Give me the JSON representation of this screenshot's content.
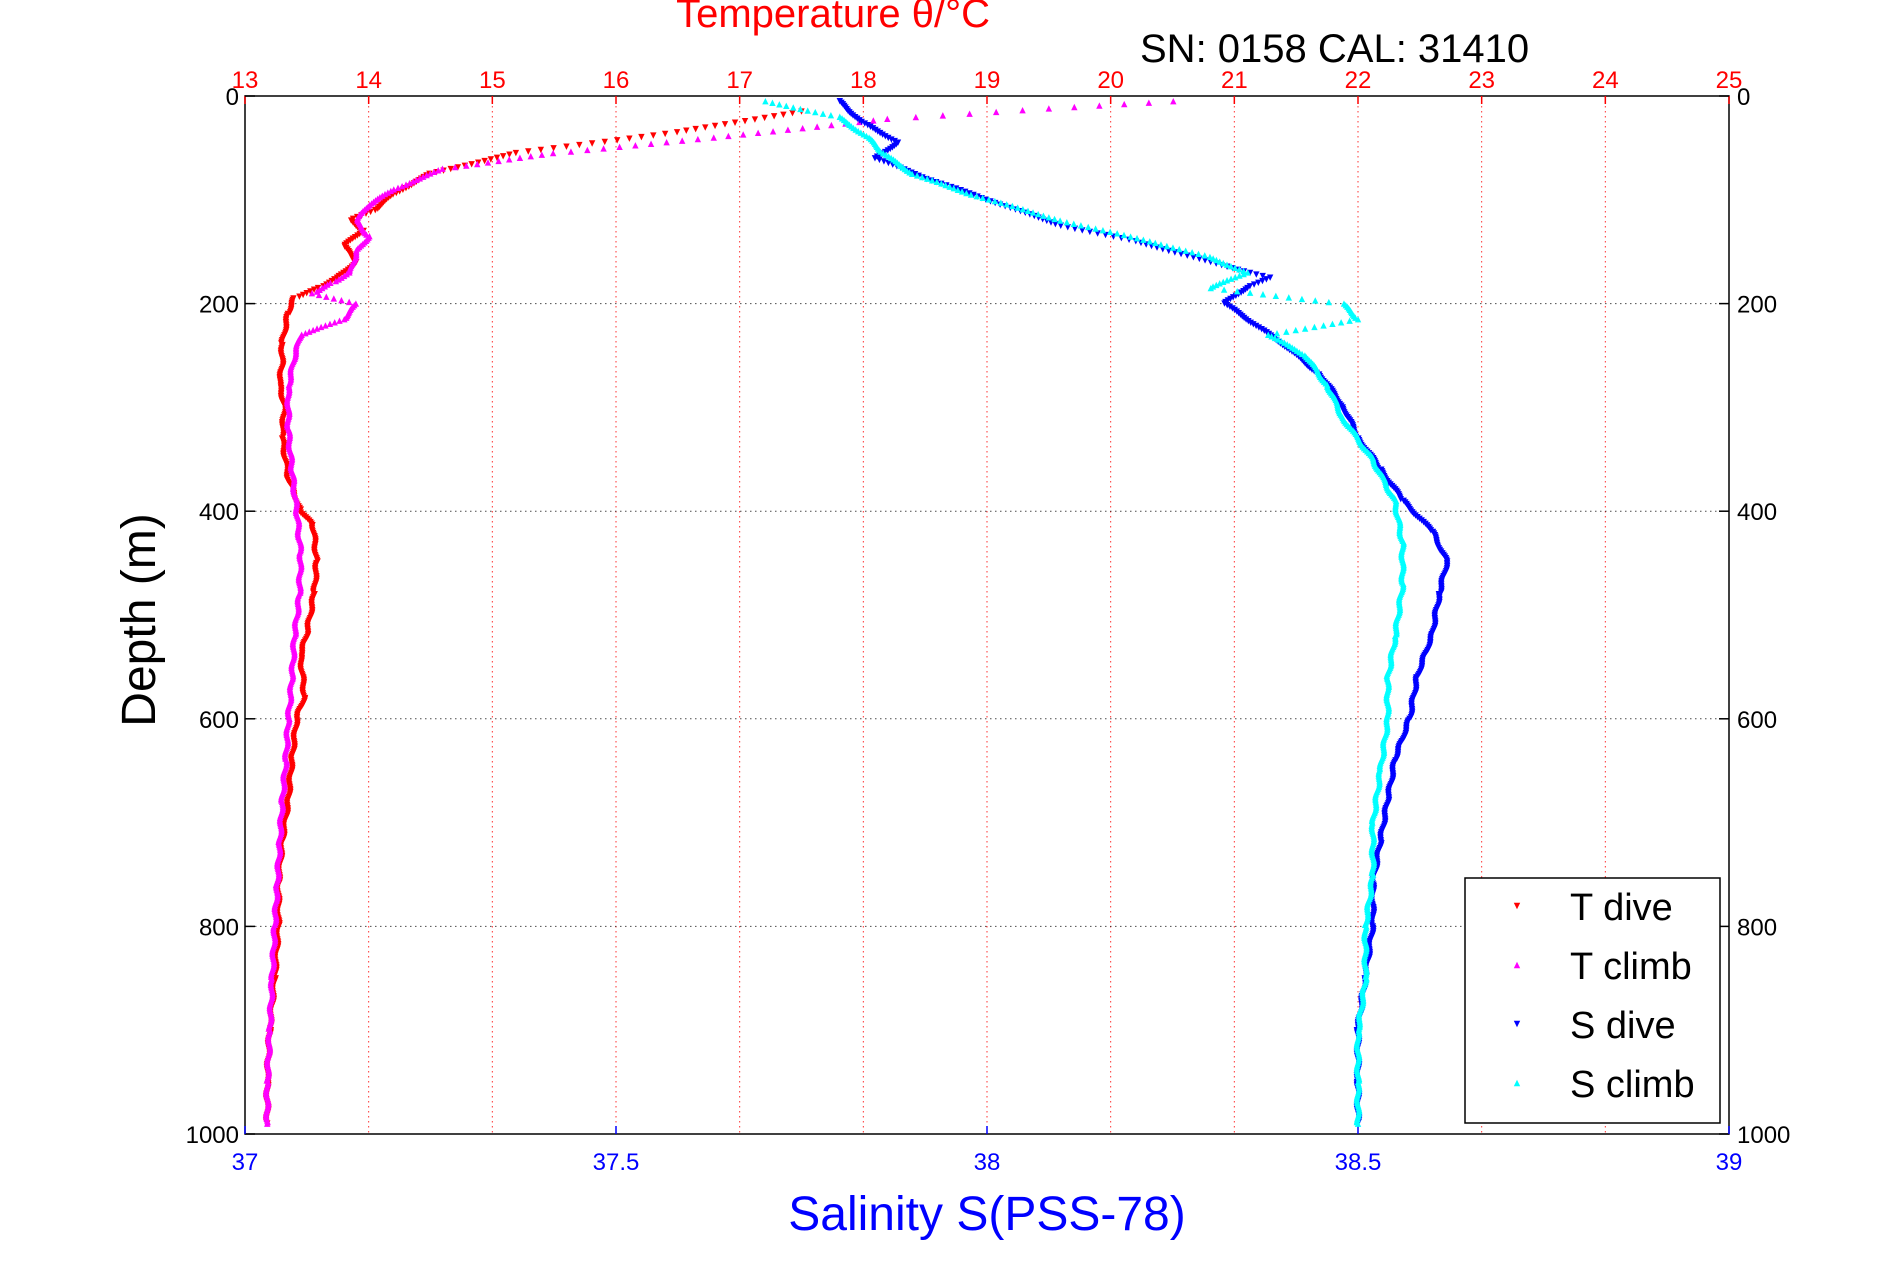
{
  "chart_data": {
    "type": "scatter",
    "title": "Temperature θ/°C",
    "subtitle": "SN: 0158  CAL: 31410",
    "ylabel": "Depth (m)",
    "xlabel_bottom": "Salinity S(PSS-78)",
    "y_axis": {
      "range": [
        0,
        1000
      ],
      "reversed": true,
      "ticks": [
        "0",
        "200",
        "400",
        "600",
        "800",
        "1000"
      ]
    },
    "x_axis_top": {
      "label": "Temperature θ/°C",
      "range": [
        13,
        25
      ],
      "ticks": [
        "13",
        "14",
        "15",
        "16",
        "17",
        "18",
        "19",
        "20",
        "21",
        "22",
        "23",
        "24",
        "25"
      ],
      "color": "#ff0000"
    },
    "x_axis_bottom": {
      "label": "Salinity S(PSS-78)",
      "range": [
        37,
        39
      ],
      "ticks": [
        "37",
        "37.5",
        "38",
        "38.5",
        "39"
      ],
      "color": "#0000ff"
    },
    "grid": true,
    "legend_position": "bottom-right",
    "series": [
      {
        "name": "T dive",
        "axis": "top",
        "color": "#ff0000",
        "marker": "triangle-down",
        "points": [
          [
            17.5,
            15
          ],
          [
            16.5,
            35
          ],
          [
            15.2,
            55
          ],
          [
            14.5,
            75
          ],
          [
            14.2,
            95
          ],
          [
            14.05,
            110
          ],
          [
            13.85,
            120
          ],
          [
            13.95,
            130
          ],
          [
            13.8,
            145
          ],
          [
            13.9,
            160
          ],
          [
            13.75,
            175
          ],
          [
            13.6,
            185
          ],
          [
            13.4,
            195
          ],
          [
            13.35,
            210
          ],
          [
            13.3,
            240
          ],
          [
            13.3,
            260
          ],
          [
            13.28,
            280
          ],
          [
            13.32,
            300
          ],
          [
            13.3,
            330
          ],
          [
            13.35,
            370
          ],
          [
            13.45,
            400
          ],
          [
            13.55,
            415
          ],
          [
            13.58,
            450
          ],
          [
            13.56,
            480
          ],
          [
            13.5,
            520
          ],
          [
            13.45,
            540
          ],
          [
            13.48,
            580
          ],
          [
            13.42,
            600
          ],
          [
            13.38,
            640
          ],
          [
            13.35,
            680
          ],
          [
            13.3,
            720
          ],
          [
            13.27,
            760
          ],
          [
            13.27,
            800
          ],
          [
            13.24,
            850
          ],
          [
            13.2,
            900
          ],
          [
            13.18,
            950
          ],
          [
            13.18,
            990
          ]
        ]
      },
      {
        "name": "T climb",
        "axis": "top",
        "color": "#ff00ff",
        "marker": "triangle-up",
        "points": [
          [
            20.5,
            5
          ],
          [
            19.5,
            12
          ],
          [
            18.2,
            22
          ],
          [
            16.8,
            40
          ],
          [
            15.5,
            55
          ],
          [
            14.6,
            70
          ],
          [
            14.2,
            90
          ],
          [
            14.0,
            105
          ],
          [
            13.9,
            120
          ],
          [
            14.0,
            135
          ],
          [
            13.9,
            150
          ],
          [
            13.85,
            170
          ],
          [
            13.7,
            180
          ],
          [
            13.55,
            190
          ],
          [
            13.9,
            200
          ],
          [
            13.8,
            215
          ],
          [
            13.45,
            230
          ],
          [
            13.4,
            250
          ],
          [
            13.35,
            280
          ],
          [
            13.35,
            320
          ],
          [
            13.38,
            360
          ],
          [
            13.42,
            400
          ],
          [
            13.45,
            440
          ],
          [
            13.44,
            480
          ],
          [
            13.4,
            520
          ],
          [
            13.38,
            560
          ],
          [
            13.35,
            600
          ],
          [
            13.33,
            640
          ],
          [
            13.3,
            680
          ],
          [
            13.28,
            720
          ],
          [
            13.26,
            760
          ],
          [
            13.24,
            800
          ],
          [
            13.22,
            850
          ],
          [
            13.2,
            900
          ],
          [
            13.18,
            950
          ],
          [
            13.18,
            990
          ]
        ]
      },
      {
        "name": "S dive",
        "axis": "bottom",
        "color": "#0000ff",
        "marker": "triangle-down",
        "points": [
          [
            37.8,
            5
          ],
          [
            37.83,
            25
          ],
          [
            37.88,
            45
          ],
          [
            37.85,
            60
          ],
          [
            37.92,
            80
          ],
          [
            38.0,
            100
          ],
          [
            38.1,
            125
          ],
          [
            38.2,
            140
          ],
          [
            38.3,
            160
          ],
          [
            38.38,
            175
          ],
          [
            38.35,
            185
          ],
          [
            38.32,
            200
          ],
          [
            38.36,
            220
          ],
          [
            38.4,
            240
          ],
          [
            38.45,
            270
          ],
          [
            38.48,
            300
          ],
          [
            38.5,
            330
          ],
          [
            38.53,
            360
          ],
          [
            38.56,
            390
          ],
          [
            38.6,
            420
          ],
          [
            38.62,
            450
          ],
          [
            38.61,
            480
          ],
          [
            38.6,
            520
          ],
          [
            38.58,
            560
          ],
          [
            38.57,
            600
          ],
          [
            38.55,
            640
          ],
          [
            38.54,
            680
          ],
          [
            38.53,
            720
          ],
          [
            38.52,
            760
          ],
          [
            38.52,
            800
          ],
          [
            38.51,
            850
          ],
          [
            38.5,
            900
          ],
          [
            38.5,
            950
          ],
          [
            38.5,
            990
          ]
        ]
      },
      {
        "name": "S climb",
        "axis": "bottom",
        "color": "#00ffff",
        "marker": "triangle-up",
        "points": [
          [
            37.7,
            5
          ],
          [
            37.8,
            20
          ],
          [
            37.84,
            40
          ],
          [
            37.86,
            55
          ],
          [
            37.9,
            75
          ],
          [
            37.98,
            95
          ],
          [
            38.1,
            120
          ],
          [
            38.22,
            140
          ],
          [
            38.3,
            155
          ],
          [
            38.35,
            170
          ],
          [
            38.3,
            185
          ],
          [
            38.48,
            200
          ],
          [
            38.5,
            215
          ],
          [
            38.38,
            230
          ],
          [
            38.43,
            250
          ],
          [
            38.46,
            280
          ],
          [
            38.48,
            310
          ],
          [
            38.52,
            350
          ],
          [
            38.55,
            390
          ],
          [
            38.56,
            430
          ],
          [
            38.56,
            470
          ],
          [
            38.55,
            520
          ],
          [
            38.54,
            560
          ],
          [
            38.54,
            600
          ],
          [
            38.53,
            650
          ],
          [
            38.52,
            700
          ],
          [
            38.52,
            750
          ],
          [
            38.51,
            800
          ],
          [
            38.51,
            850
          ],
          [
            38.5,
            900
          ],
          [
            38.5,
            950
          ],
          [
            38.5,
            990
          ]
        ]
      }
    ]
  }
}
